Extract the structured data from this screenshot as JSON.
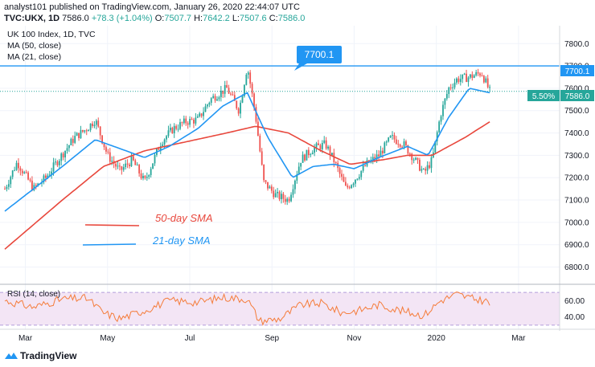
{
  "header": {
    "line1": "analyst101 published on TradingView.com, January 26, 2020 22:44:07 UTC",
    "symbol": "TVC:UKX, 1D",
    "last": "7586.0",
    "change": "+78.3 (+1.04%)",
    "o_label": "O:",
    "o": "7507.7",
    "h_label": "H:",
    "h": "7642.2",
    "l_label": "L:",
    "l": "7507.6",
    "c_label": "C:",
    "c": "7586.0"
  },
  "legend": {
    "title": "UK 100 Index, 1D, TVC",
    "ma1": "MA (50, close)",
    "ma2": "MA (21, close)",
    "rsi": "RSI (14, close)"
  },
  "annotations": {
    "resistance_label": "7700.1",
    "sma50_label": "50-day SMA",
    "sma21_label": "21-day SMA"
  },
  "price_tags": {
    "resistance": "7700.1",
    "percent": "5.50%",
    "last": "7586.0"
  },
  "footer": {
    "brand": "TradingView"
  },
  "colors": {
    "up": "#26a69a",
    "down": "#ef5350",
    "sma50": "#e8473c",
    "sma21": "#2196f3",
    "rsi": "#f57c3a",
    "rsi_band": "#f3e5f5",
    "resistance": "#2196f3"
  },
  "chart_data": {
    "type": "candlestick",
    "x_ticks": [
      "Mar",
      "May",
      "Jul",
      "Sep",
      "Nov",
      "2020",
      "Mar"
    ],
    "y_ticks": [
      6800,
      6900,
      7000,
      7100,
      7200,
      7300,
      7400,
      7500,
      7600,
      7700,
      7800
    ],
    "ylim": [
      6730,
      7880
    ],
    "x_range_months": [
      1.6,
      15.1
    ],
    "resistance_level": 7700.1,
    "last_close": 7586.0,
    "price_anchors": [
      [
        1.6,
        7150
      ],
      [
        1.9,
        7270
      ],
      [
        2.3,
        7150
      ],
      [
        2.6,
        7200
      ],
      [
        2.9,
        7280
      ],
      [
        3.3,
        7380
      ],
      [
        3.6,
        7420
      ],
      [
        3.8,
        7460
      ],
      [
        4.1,
        7300
      ],
      [
        4.4,
        7230
      ],
      [
        4.7,
        7280
      ],
      [
        5.0,
        7180
      ],
      [
        5.4,
        7360
      ],
      [
        5.7,
        7420
      ],
      [
        6.0,
        7450
      ],
      [
        6.3,
        7460
      ],
      [
        6.6,
        7550
      ],
      [
        7.0,
        7600
      ],
      [
        7.3,
        7500
      ],
      [
        7.5,
        7700
      ],
      [
        7.7,
        7480
      ],
      [
        7.9,
        7180
      ],
      [
        8.2,
        7120
      ],
      [
        8.5,
        7100
      ],
      [
        8.8,
        7280
      ],
      [
        9.1,
        7330
      ],
      [
        9.4,
        7350
      ],
      [
        9.6,
        7280
      ],
      [
        9.9,
        7150
      ],
      [
        10.1,
        7190
      ],
      [
        10.4,
        7260
      ],
      [
        10.7,
        7300
      ],
      [
        11.0,
        7380
      ],
      [
        11.3,
        7350
      ],
      [
        11.5,
        7300
      ],
      [
        11.8,
        7220
      ],
      [
        12.0,
        7280
      ],
      [
        12.2,
        7480
      ],
      [
        12.4,
        7600
      ],
      [
        12.6,
        7640
      ],
      [
        12.9,
        7650
      ],
      [
        13.2,
        7670
      ],
      [
        13.4,
        7586
      ]
    ],
    "sma50": [
      [
        1.6,
        6880
      ],
      [
        3.0,
        7100
      ],
      [
        4.0,
        7250
      ],
      [
        5.0,
        7320
      ],
      [
        6.0,
        7360
      ],
      [
        7.0,
        7400
      ],
      [
        7.7,
        7430
      ],
      [
        8.5,
        7400
      ],
      [
        9.3,
        7320
      ],
      [
        10.0,
        7260
      ],
      [
        10.8,
        7280
      ],
      [
        11.4,
        7300
      ],
      [
        12.0,
        7300
      ],
      [
        12.8,
        7380
      ],
      [
        13.4,
        7450
      ]
    ],
    "sma21": [
      [
        1.6,
        7050
      ],
      [
        2.3,
        7150
      ],
      [
        3.0,
        7250
      ],
      [
        3.8,
        7370
      ],
      [
        4.4,
        7330
      ],
      [
        5.0,
        7290
      ],
      [
        5.6,
        7340
      ],
      [
        6.3,
        7420
      ],
      [
        6.9,
        7520
      ],
      [
        7.5,
        7580
      ],
      [
        8.0,
        7380
      ],
      [
        8.6,
        7200
      ],
      [
        9.1,
        7250
      ],
      [
        9.6,
        7260
      ],
      [
        10.1,
        7240
      ],
      [
        10.7,
        7290
      ],
      [
        11.4,
        7340
      ],
      [
        11.9,
        7300
      ],
      [
        12.4,
        7470
      ],
      [
        12.9,
        7600
      ],
      [
        13.4,
        7580
      ]
    ],
    "rsi": {
      "ylim": [
        25,
        80
      ],
      "ticks": [
        40,
        60
      ],
      "band": [
        30,
        70
      ],
      "anchors": [
        [
          1.6,
          60
        ],
        [
          2.3,
          52
        ],
        [
          3.0,
          62
        ],
        [
          3.6,
          63
        ],
        [
          4.0,
          45
        ],
        [
          4.4,
          38
        ],
        [
          5.0,
          48
        ],
        [
          5.6,
          60
        ],
        [
          6.3,
          58
        ],
        [
          6.9,
          64
        ],
        [
          7.5,
          62
        ],
        [
          7.8,
          35
        ],
        [
          8.3,
          38
        ],
        [
          8.8,
          55
        ],
        [
          9.3,
          57
        ],
        [
          9.8,
          45
        ],
        [
          10.2,
          48
        ],
        [
          10.7,
          55
        ],
        [
          11.3,
          47
        ],
        [
          11.8,
          42
        ],
        [
          12.2,
          60
        ],
        [
          12.6,
          68
        ],
        [
          13.0,
          62
        ],
        [
          13.3,
          60
        ],
        [
          13.4,
          55
        ]
      ]
    }
  }
}
